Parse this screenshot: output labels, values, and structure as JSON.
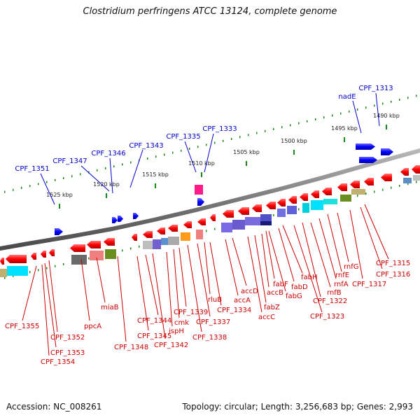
{
  "title": "Clostridium perfringens ATCC 13124, complete genome",
  "footer": {
    "accession": "Accession: NC_008261",
    "summary": "Topology: circular; Length: 3,256,683 bp; Genes: 2,993"
  },
  "colors": {
    "backbone": "#8a8a8a",
    "ticks": "#1a8a1a",
    "forward_gene": "#ff0000",
    "reverse_gene": "#0000ff",
    "label_upper": "#0000cc",
    "label_lower": "#cc0000"
  },
  "scale_labels": [
    "1490 kbp",
    "1495 kbp",
    "1500 kbp",
    "1505 kbp",
    "1510 kbp",
    "1515 kbp",
    "1520 kbp",
    "1525 kbp"
  ],
  "upper_labels": [
    "CPF_1313",
    "nadE",
    "CPF_1333",
    "CPF_1335",
    "CPF_1343",
    "CPF_1346",
    "CPF_1347",
    "CPF_1351"
  ],
  "lower_labels": [
    "CPF_1315",
    "CPF_1316",
    "CPF_1317",
    "rnfG",
    "rnfE",
    "rnfA",
    "rnfB",
    "CPF_1322",
    "CPF_1323",
    "fabH",
    "fabD",
    "fabG",
    "fabF",
    "accB",
    "fabZ",
    "accC",
    "accD",
    "accA",
    "CPF_1334",
    "rluB",
    "CPF_1337",
    "CPF_1338",
    "CPF_1339",
    "cmk",
    "ispH",
    "CPF_1342",
    "CPF_1344",
    "CPF_1345",
    "CPF_1348",
    "miaB",
    "ppcA",
    "CPF_1352",
    "CPF_1353",
    "CPF_1354",
    "CPF_1355"
  ]
}
